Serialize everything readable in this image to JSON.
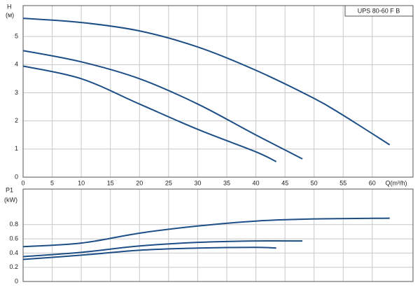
{
  "chart_data": [
    {
      "type": "line",
      "title": "UPS 80-60 F B",
      "y_label": "H",
      "y_unit": "(м)",
      "x_label": "Q(m³/h)",
      "xlim": [
        0,
        67
      ],
      "xticks": [
        0,
        5,
        10,
        15,
        20,
        25,
        30,
        35,
        40,
        45,
        50,
        55,
        60
      ],
      "ylim": [
        0,
        6.1
      ],
      "yticks": [
        0,
        1,
        2,
        3,
        4,
        5
      ],
      "grid": true,
      "series": [
        {
          "color": "#1d4e86",
          "x": [
            0,
            10,
            20,
            30,
            40,
            50,
            55,
            63
          ],
          "values": [
            5.65,
            5.5,
            5.2,
            4.63,
            3.8,
            2.8,
            2.2,
            1.15
          ]
        },
        {
          "color": "#1d4e86",
          "x": [
            0,
            10,
            20,
            30,
            40,
            48
          ],
          "values": [
            4.5,
            4.1,
            3.5,
            2.6,
            1.5,
            0.65
          ]
        },
        {
          "color": "#1d4e86",
          "x": [
            0,
            10,
            20,
            30,
            40,
            43.5
          ],
          "values": [
            3.95,
            3.5,
            2.6,
            1.7,
            0.9,
            0.55
          ]
        }
      ]
    },
    {
      "type": "line",
      "y_label": "P1",
      "y_unit": "(kW)",
      "xlim": [
        0,
        67
      ],
      "ylim": [
        0,
        1.3
      ],
      "yticks": [
        0,
        0.2,
        0.4,
        0.6,
        0.8
      ],
      "grid": true,
      "series": [
        {
          "color": "#1d4e86",
          "x": [
            0,
            10,
            20,
            30,
            40,
            50,
            63
          ],
          "values": [
            0.49,
            0.54,
            0.68,
            0.78,
            0.85,
            0.88,
            0.89
          ]
        },
        {
          "color": "#1d4e86",
          "x": [
            0,
            10,
            20,
            30,
            40,
            48
          ],
          "values": [
            0.35,
            0.41,
            0.5,
            0.55,
            0.57,
            0.57
          ]
        },
        {
          "color": "#1d4e86",
          "x": [
            0,
            10,
            20,
            30,
            40,
            43.5
          ],
          "values": [
            0.31,
            0.37,
            0.44,
            0.47,
            0.48,
            0.47
          ]
        }
      ]
    }
  ]
}
